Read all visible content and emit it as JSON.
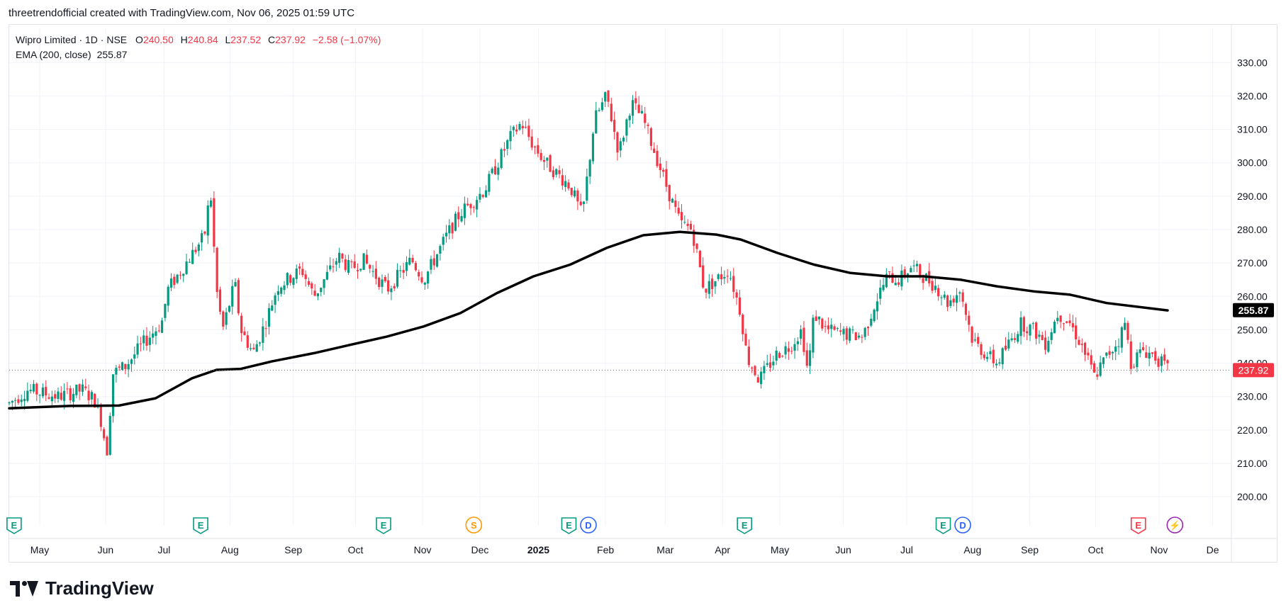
{
  "caption": "threetrendofficial created with TradingView.com, Nov 06, 2025 01:59 UTC",
  "brand": {
    "name": "TradingView"
  },
  "legend": {
    "symbol": "Wipro Limited · 1D · NSE",
    "o_label": "O",
    "o_value": "240.50",
    "h_label": "H",
    "h_value": "240.84",
    "l_label": "L",
    "l_value": "237.52",
    "c_label": "C",
    "c_value": "237.92",
    "change": "−2.58 (−1.07%)",
    "ema_label": "EMA (200, close)",
    "ema_value": "255.87"
  },
  "colors": {
    "up": "#089981",
    "down": "#f23645",
    "ema": "#000000",
    "grid": "#f0f3fa",
    "axis_text": "#131722",
    "last_price": "#f23645",
    "event_earnings": "#089981",
    "event_dividend": "#2962ff",
    "event_split": "#ff9800",
    "event_earnings_upcoming": "#f23645",
    "event_flash": "#9c27b0"
  },
  "chart_data": {
    "type": "candlestick",
    "title": "Wipro Limited · 1D · NSE",
    "ylim": [
      196,
      336
    ],
    "y_ticks": [
      "330.00",
      "320.00",
      "310.00",
      "300.00",
      "290.00",
      "280.00",
      "270.00",
      "260.00",
      "250.00",
      "240.00",
      "230.00",
      "220.00",
      "210.00",
      "200.00"
    ],
    "x_ticks": [
      "May",
      "Jun",
      "Jul",
      "Aug",
      "Sep",
      "Oct",
      "Nov",
      "Dec",
      "2025",
      "Feb",
      "Mar",
      "Apr",
      "May",
      "Jun",
      "Jul",
      "Aug",
      "Sep",
      "Oct",
      "Nov",
      "De"
    ],
    "x_tick_positions": [
      0.025,
      0.079,
      0.127,
      0.181,
      0.233,
      0.284,
      0.339,
      0.386,
      0.434,
      0.489,
      0.538,
      0.585,
      0.632,
      0.684,
      0.736,
      0.79,
      0.837,
      0.891,
      0.943,
      0.987
    ],
    "last_price": 237.92,
    "last_price_label": "237.92",
    "ema_label_value": "255.87",
    "ema": {
      "name": "EMA (200, close)",
      "points": [
        [
          0,
          226.5
        ],
        [
          0.05,
          227.2
        ],
        [
          0.09,
          227.3
        ],
        [
          0.12,
          229.5
        ],
        [
          0.15,
          235.5
        ],
        [
          0.17,
          238
        ],
        [
          0.19,
          238.3
        ],
        [
          0.215,
          240.5
        ],
        [
          0.25,
          243
        ],
        [
          0.28,
          245.5
        ],
        [
          0.31,
          248
        ],
        [
          0.34,
          251
        ],
        [
          0.37,
          255
        ],
        [
          0.4,
          261
        ],
        [
          0.43,
          266
        ],
        [
          0.46,
          269.5
        ],
        [
          0.49,
          274.5
        ],
        [
          0.52,
          278.3
        ],
        [
          0.55,
          279.3
        ],
        [
          0.58,
          278.5
        ],
        [
          0.6,
          277
        ],
        [
          0.63,
          273
        ],
        [
          0.66,
          269.5
        ],
        [
          0.69,
          267
        ],
        [
          0.72,
          266
        ],
        [
          0.75,
          266
        ],
        [
          0.78,
          265
        ],
        [
          0.81,
          263
        ],
        [
          0.84,
          261.5
        ],
        [
          0.87,
          260.5
        ],
        [
          0.9,
          258
        ],
        [
          0.95,
          255.8
        ]
      ]
    },
    "price_path": [
      [
        0,
        228
      ],
      [
        0.015,
        232
      ],
      [
        0.04,
        230
      ],
      [
        0.06,
        232
      ],
      [
        0.07,
        229
      ],
      [
        0.076,
        222
      ],
      [
        0.08,
        213
      ],
      [
        0.085,
        237
      ],
      [
        0.095,
        239
      ],
      [
        0.11,
        246
      ],
      [
        0.125,
        252
      ],
      [
        0.13,
        262
      ],
      [
        0.145,
        270
      ],
      [
        0.16,
        278
      ],
      [
        0.165,
        292
      ],
      [
        0.17,
        262
      ],
      [
        0.175,
        250
      ],
      [
        0.185,
        264
      ],
      [
        0.19,
        250
      ],
      [
        0.2,
        243
      ],
      [
        0.21,
        252
      ],
      [
        0.22,
        263
      ],
      [
        0.24,
        268
      ],
      [
        0.25,
        260
      ],
      [
        0.27,
        272
      ],
      [
        0.28,
        268
      ],
      [
        0.29,
        271
      ],
      [
        0.31,
        262
      ],
      [
        0.33,
        271
      ],
      [
        0.34,
        265
      ],
      [
        0.36,
        279
      ],
      [
        0.37,
        285
      ],
      [
        0.39,
        292
      ],
      [
        0.41,
        307
      ],
      [
        0.42,
        312
      ],
      [
        0.43,
        305
      ],
      [
        0.44,
        300
      ],
      [
        0.46,
        293
      ],
      [
        0.47,
        284
      ],
      [
        0.48,
        313
      ],
      [
        0.49,
        320
      ],
      [
        0.5,
        303
      ],
      [
        0.51,
        318
      ],
      [
        0.52,
        313
      ],
      [
        0.54,
        292
      ],
      [
        0.55,
        282
      ],
      [
        0.56,
        280
      ],
      [
        0.57,
        262
      ],
      [
        0.59,
        268
      ],
      [
        0.6,
        255
      ],
      [
        0.605,
        242
      ],
      [
        0.615,
        235
      ],
      [
        0.63,
        243
      ],
      [
        0.64,
        245
      ],
      [
        0.65,
        250
      ],
      [
        0.655,
        237
      ],
      [
        0.66,
        255
      ],
      [
        0.67,
        250
      ],
      [
        0.68,
        249
      ],
      [
        0.7,
        248
      ],
      [
        0.71,
        258
      ],
      [
        0.72,
        266
      ],
      [
        0.73,
        265
      ],
      [
        0.74,
        269
      ],
      [
        0.76,
        263
      ],
      [
        0.77,
        258
      ],
      [
        0.78,
        262
      ],
      [
        0.79,
        247
      ],
      [
        0.8,
        243
      ],
      [
        0.81,
        240
      ],
      [
        0.82,
        246
      ],
      [
        0.83,
        252
      ],
      [
        0.84,
        250
      ],
      [
        0.85,
        246
      ],
      [
        0.86,
        255
      ],
      [
        0.87,
        252
      ],
      [
        0.88,
        245
      ],
      [
        0.89,
        236
      ],
      [
        0.9,
        242
      ],
      [
        0.91,
        247
      ],
      [
        0.915,
        252
      ],
      [
        0.92,
        240
      ],
      [
        0.93,
        244
      ],
      [
        0.94,
        242
      ],
      [
        0.95,
        238
      ]
    ],
    "events": [
      {
        "letter": "E",
        "kind": "earnings",
        "pos": 0.004
      },
      {
        "letter": "E",
        "kind": "earnings",
        "pos": 0.157
      },
      {
        "letter": "E",
        "kind": "earnings",
        "pos": 0.307
      },
      {
        "letter": "S",
        "kind": "split",
        "pos": 0.381
      },
      {
        "letter": "E",
        "kind": "earnings",
        "pos": 0.459
      },
      {
        "letter": "D",
        "kind": "dividend",
        "pos": 0.475
      },
      {
        "letter": "E",
        "kind": "earnings",
        "pos": 0.603
      },
      {
        "letter": "E",
        "kind": "earnings",
        "pos": 0.766
      },
      {
        "letter": "D",
        "kind": "dividend",
        "pos": 0.782
      },
      {
        "letter": "E",
        "kind": "earnings_upcoming",
        "pos": 0.926
      },
      {
        "letter": "⚡",
        "kind": "flash",
        "pos": 0.956
      }
    ]
  }
}
